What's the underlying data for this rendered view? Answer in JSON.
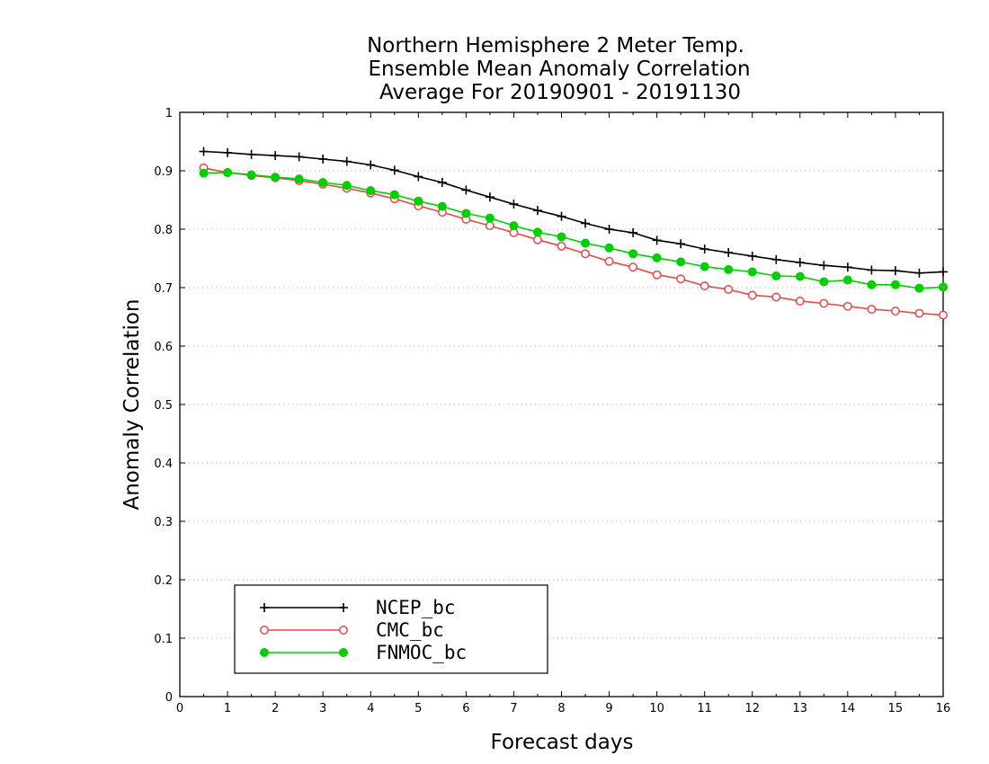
{
  "chart_data": {
    "type": "line",
    "title_lines": [
      "Northern Hemisphere 2 Meter Temp.",
      "Ensemble Mean Anomaly Correlation",
      "Average For 20190901 - 20191130"
    ],
    "xlabel": "Forecast days",
    "ylabel": "Anomaly Correlation",
    "xlim": [
      0,
      16
    ],
    "ylim": [
      0,
      1
    ],
    "xticks": [
      "0",
      "1",
      "2",
      "3",
      "4",
      "5",
      "6",
      "7",
      "8",
      "9",
      "10",
      "11",
      "12",
      "13",
      "14",
      "15",
      "16"
    ],
    "yticks": [
      "0",
      "0.1",
      "0.2",
      "0.3",
      "0.4",
      "0.5",
      "0.6",
      "0.7",
      "0.8",
      "0.9",
      "1"
    ],
    "grid": "horizontal dotted",
    "legend_position": "bottom-left",
    "x": [
      0.5,
      1,
      1.5,
      2,
      2.5,
      3,
      3.5,
      4,
      4.5,
      5,
      5.5,
      6,
      6.5,
      7,
      7.5,
      8,
      8.5,
      9,
      9.5,
      10,
      10.5,
      11,
      11.5,
      12,
      12.5,
      13,
      13.5,
      14,
      14.5,
      15,
      15.5,
      16
    ],
    "series": [
      {
        "name": "NCEP_bc",
        "color": "#000000",
        "marker": "plus",
        "values": [
          0.933,
          0.931,
          0.928,
          0.926,
          0.924,
          0.92,
          0.916,
          0.91,
          0.901,
          0.89,
          0.88,
          0.867,
          0.855,
          0.843,
          0.832,
          0.822,
          0.81,
          0.8,
          0.794,
          0.781,
          0.775,
          0.766,
          0.76,
          0.754,
          0.748,
          0.743,
          0.738,
          0.735,
          0.73,
          0.729,
          0.725,
          0.727
        ]
      },
      {
        "name": "CMC_bc",
        "color": "#e84848",
        "marker": "open-circle",
        "values": [
          0.905,
          0.897,
          0.892,
          0.888,
          0.883,
          0.877,
          0.87,
          0.862,
          0.852,
          0.84,
          0.829,
          0.817,
          0.806,
          0.794,
          0.782,
          0.771,
          0.758,
          0.745,
          0.735,
          0.722,
          0.715,
          0.703,
          0.697,
          0.687,
          0.684,
          0.677,
          0.673,
          0.668,
          0.663,
          0.66,
          0.656,
          0.653
        ]
      },
      {
        "name": "FNMOC_bc",
        "color": "#00d000",
        "marker": "filled-circle",
        "values": [
          0.896,
          0.897,
          0.893,
          0.889,
          0.886,
          0.88,
          0.875,
          0.866,
          0.859,
          0.848,
          0.839,
          0.827,
          0.819,
          0.806,
          0.795,
          0.787,
          0.776,
          0.768,
          0.758,
          0.751,
          0.744,
          0.736,
          0.731,
          0.727,
          0.72,
          0.719,
          0.71,
          0.713,
          0.705,
          0.705,
          0.699,
          0.701
        ]
      }
    ]
  }
}
